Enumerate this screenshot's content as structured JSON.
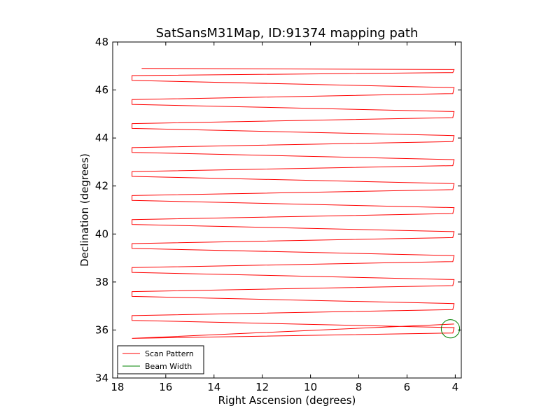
{
  "chart_data": {
    "type": "line",
    "title": "SatSansM31Map, ID:91374 mapping path",
    "xlabel": "Right Ascension (degrees)",
    "ylabel": "Declination (degrees)",
    "xlim": [
      18.2,
      3.75
    ],
    "ylim": [
      34,
      48
    ],
    "x_ticks": [
      18,
      16,
      14,
      12,
      10,
      8,
      6,
      4
    ],
    "y_ticks": [
      34,
      36,
      38,
      40,
      42,
      44,
      46,
      48
    ],
    "x_tick_labels": [
      "18",
      "16",
      "14",
      "12",
      "10",
      "8",
      "6",
      "4"
    ],
    "y_tick_labels": [
      "34",
      "36",
      "38",
      "40",
      "42",
      "44",
      "46",
      "48"
    ],
    "grid": false,
    "legend_position": "lower-left",
    "series": [
      {
        "name": "Scan Pattern",
        "color": "#ff0000",
        "kind": "boustrophedon raster",
        "ra_west": 17.4,
        "ra_east": 4.05,
        "path_start": [
          17.0,
          46.9
        ],
        "path_end": [
          4.05,
          36.25
        ],
        "legs_dec": [
          46.85,
          46.6,
          46.1,
          45.6,
          45.1,
          44.6,
          44.1,
          43.6,
          43.1,
          42.6,
          42.1,
          41.6,
          41.1,
          40.6,
          40.1,
          39.6,
          39.1,
          38.6,
          38.1,
          37.6,
          37.1,
          36.6,
          36.1,
          35.65
        ]
      },
      {
        "name": "Beam Width",
        "color": "#008000",
        "kind": "circle",
        "center": [
          4.2,
          36.05
        ],
        "radius_deg": 0.38
      }
    ]
  }
}
